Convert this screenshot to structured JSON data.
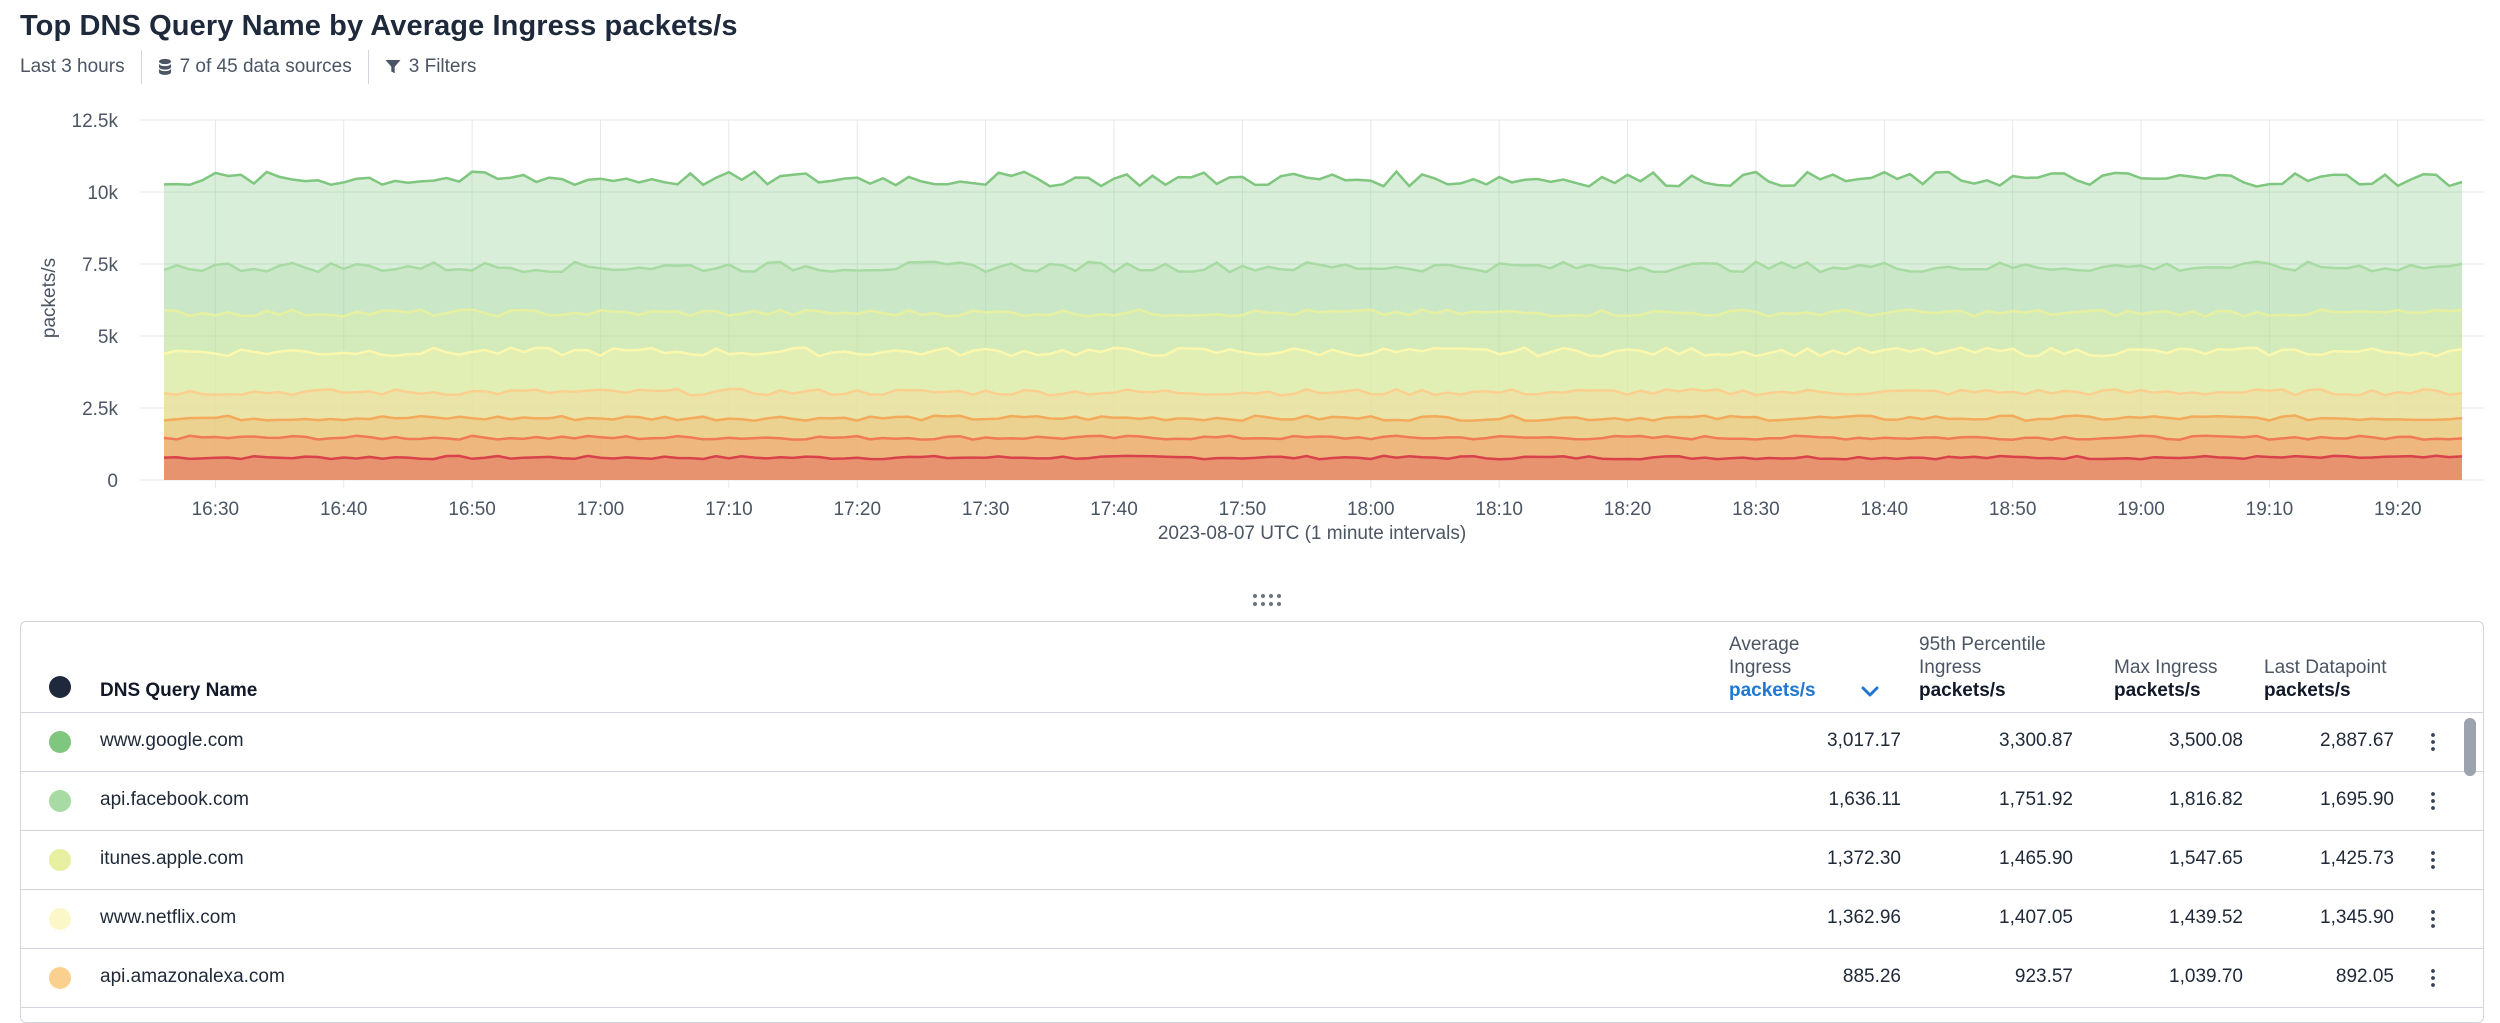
{
  "header": {
    "title": "Top DNS Query Name by Average Ingress packets/s",
    "time_range": "Last 3 hours",
    "data_sources": "7 of 45 data sources",
    "filters": "3 Filters"
  },
  "chart_data": {
    "type": "area",
    "stacked": true,
    "ylabel": "packets/s",
    "xlabel": "2023-08-07 UTC (1 minute intervals)",
    "ylim": [
      0,
      12500
    ],
    "y_ticks": [
      "0",
      "2.5k",
      "5k",
      "7.5k",
      "10k",
      "12.5k"
    ],
    "x_ticks": [
      "16:30",
      "16:40",
      "16:50",
      "17:00",
      "17:10",
      "17:20",
      "17:30",
      "17:40",
      "17:50",
      "18:00",
      "18:10",
      "18:20",
      "18:30",
      "18:40",
      "18:50",
      "19:00",
      "19:10",
      "19:20"
    ],
    "x_range": [
      "16:26",
      "19:25"
    ],
    "grid": true,
    "legend": "none",
    "series_order_bottom_to_top": [
      "red",
      "orange-red",
      "orange",
      "light-orange",
      "yellow",
      "yellow-green",
      "light-green",
      "green"
    ],
    "series_colors": [
      "#d9414b",
      "#f07a55",
      "#f3aa5b",
      "#fbd08f",
      "#fbf7ad",
      "#e6f0a0",
      "#a8dba3",
      "#7fc67f"
    ],
    "series_avg_values": [
      780,
      1470,
      2150,
      3050,
      4450,
      5800,
      7400,
      10450
    ]
  },
  "table": {
    "columns": {
      "name": "DNS Query Name",
      "avg": {
        "label": "Average Ingress",
        "unit": "packets/s"
      },
      "p95": {
        "label": "95th Percentile Ingress",
        "unit": "packets/s"
      },
      "max": {
        "label": "Max Ingress",
        "unit": "packets/s"
      },
      "last": {
        "label": "Last Datapoint",
        "unit": "packets/s"
      }
    },
    "rows": [
      {
        "name": "www.google.com",
        "color": "#7fc67f",
        "avg": "3,017.17",
        "p95": "3,300.87",
        "max": "3,500.08",
        "last": "2,887.67"
      },
      {
        "name": "api.facebook.com",
        "color": "#a8dba3",
        "avg": "1,636.11",
        "p95": "1,751.92",
        "max": "1,816.82",
        "last": "1,695.90"
      },
      {
        "name": "itunes.apple.com",
        "color": "#e6f0a0",
        "avg": "1,372.30",
        "p95": "1,465.90",
        "max": "1,547.65",
        "last": "1,425.73"
      },
      {
        "name": "www.netflix.com",
        "color": "#fbf7c8",
        "avg": "1,362.96",
        "p95": "1,407.05",
        "max": "1,439.52",
        "last": "1,345.90"
      },
      {
        "name": "api.amazonalexa.com",
        "color": "#fbd08f",
        "avg": "885.26",
        "p95": "923.57",
        "max": "1,039.70",
        "last": "892.05"
      }
    ]
  }
}
